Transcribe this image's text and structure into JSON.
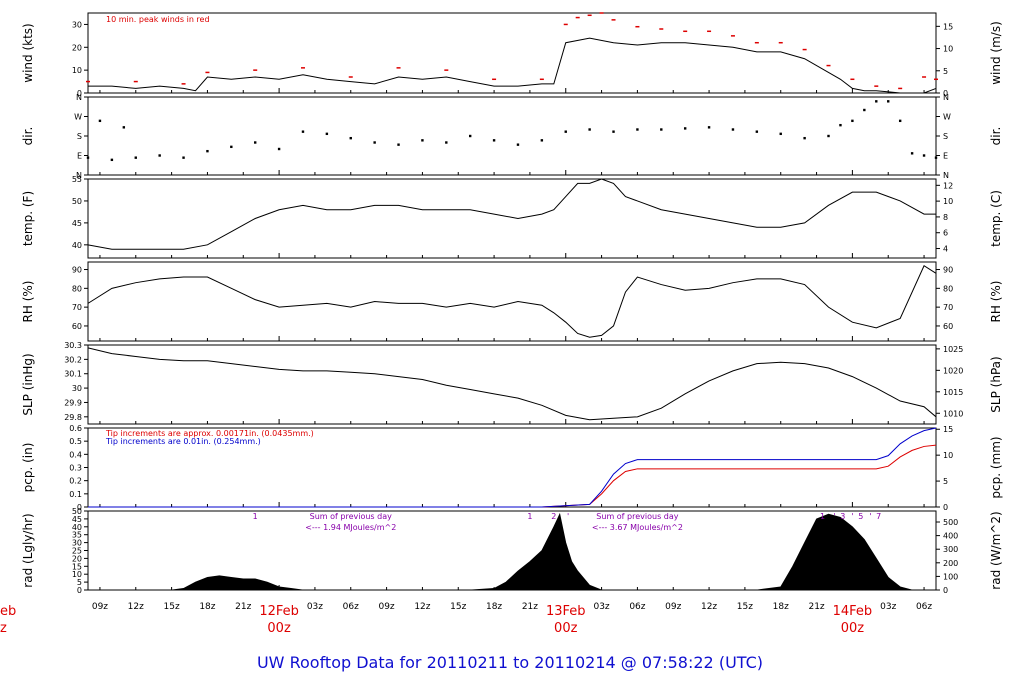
{
  "figure": {
    "title": "UW Rooftop Data for 20110211  to  20110214 @ 07:58:22  (UTC)",
    "title_color": "#1010d0"
  },
  "colors": {
    "line": "#000000",
    "red": "#dd0000",
    "blue": "#0000cc",
    "purple": "#8800aa"
  },
  "chart_data": [
    {
      "id": "wind",
      "type": "line",
      "ylabel": "wind (kts)",
      "ylabel_right": "wind (m/s)",
      "ylim": [
        0,
        35
      ],
      "yticks": [
        0,
        10,
        20,
        30
      ],
      "ylim_right": [
        0,
        18
      ],
      "yticks_right": [
        0,
        5,
        10,
        15
      ],
      "note": "10 min. peak winds in red",
      "series": [
        {
          "name": "wind",
          "color": "#000000",
          "x": [
            8,
            10,
            12,
            14,
            16,
            17,
            18,
            20,
            22,
            24,
            26,
            28,
            30,
            32,
            34,
            36,
            38,
            40,
            42,
            44,
            46,
            47,
            48,
            50,
            52,
            54,
            56,
            58,
            60,
            62,
            64,
            66,
            68,
            70,
            71,
            72,
            73,
            74,
            76,
            78,
            79
          ],
          "y": [
            3,
            3,
            2,
            3,
            2,
            1,
            7,
            6,
            7,
            6,
            8,
            6,
            5,
            4,
            7,
            6,
            7,
            5,
            3,
            3,
            4,
            4,
            22,
            24,
            22,
            21,
            22,
            22,
            21,
            20,
            18,
            18,
            15,
            9,
            6,
            2,
            1,
            1,
            0,
            0,
            2
          ]
        },
        {
          "name": "peak",
          "color": "#dd0000",
          "x": [
            8,
            12,
            16,
            18,
            22,
            26,
            30,
            34,
            38,
            42,
            46,
            48,
            49,
            50,
            51,
            52,
            54,
            56,
            58,
            60,
            62,
            64,
            66,
            68,
            70,
            72,
            74,
            76,
            78,
            79
          ],
          "y": [
            5,
            5,
            4,
            9,
            10,
            11,
            7,
            11,
            10,
            6,
            6,
            30,
            33,
            34,
            35,
            32,
            29,
            28,
            27,
            27,
            25,
            22,
            22,
            19,
            12,
            6,
            3,
            2,
            7,
            6
          ]
        }
      ]
    },
    {
      "id": "dir",
      "type": "scatter",
      "ylabel": "dir.",
      "ylabel_right": "dir.",
      "ylim": [
        0,
        360
      ],
      "ytick_labels": [
        "N",
        "E",
        "S",
        "W",
        "N"
      ],
      "ytick_values": [
        0,
        90,
        180,
        270,
        360
      ],
      "series": [
        {
          "name": "direction",
          "color": "#000000",
          "x": [
            8,
            9,
            10,
            11,
            12,
            14,
            16,
            18,
            20,
            22,
            24,
            26,
            28,
            30,
            32,
            34,
            36,
            38,
            40,
            42,
            44,
            46,
            48,
            50,
            52,
            54,
            56,
            58,
            60,
            62,
            64,
            66,
            68,
            70,
            71,
            72,
            73,
            74,
            75,
            76,
            77,
            78,
            79
          ],
          "y": [
            80,
            250,
            70,
            220,
            80,
            90,
            80,
            110,
            130,
            150,
            120,
            200,
            190,
            170,
            150,
            140,
            160,
            150,
            180,
            160,
            140,
            160,
            200,
            210,
            200,
            210,
            210,
            215,
            220,
            210,
            200,
            190,
            170,
            180,
            230,
            250,
            300,
            340,
            340,
            250,
            100,
            90,
            80
          ]
        }
      ]
    },
    {
      "id": "temp",
      "type": "line",
      "ylabel": "temp. (F)",
      "ylabel_right": "temp. (C)",
      "ylim": [
        37,
        55
      ],
      "yticks": [
        40,
        45,
        50,
        55
      ],
      "ylim_right": [
        2.8,
        12.8
      ],
      "yticks_right": [
        4,
        6,
        8,
        10,
        12
      ],
      "series": [
        {
          "name": "temperature",
          "color": "#000000",
          "x": [
            8,
            10,
            12,
            14,
            16,
            18,
            20,
            22,
            24,
            26,
            28,
            30,
            32,
            34,
            36,
            38,
            40,
            42,
            44,
            46,
            47,
            48,
            49,
            50,
            51,
            52,
            53,
            54,
            56,
            58,
            60,
            62,
            64,
            66,
            68,
            70,
            72,
            74,
            76,
            78,
            79
          ],
          "y": [
            40,
            39,
            39,
            39,
            39,
            40,
            43,
            46,
            48,
            49,
            48,
            48,
            49,
            49,
            48,
            48,
            48,
            47,
            46,
            47,
            48,
            51,
            54,
            54,
            55,
            54,
            51,
            50,
            48,
            47,
            46,
            45,
            44,
            44,
            45,
            49,
            52,
            52,
            50,
            47,
            47
          ]
        }
      ]
    },
    {
      "id": "rh",
      "type": "line",
      "ylabel": "RH (%)",
      "ylabel_right": "RH (%)",
      "ylim": [
        52,
        94
      ],
      "yticks": [
        60,
        70,
        80,
        90
      ],
      "series": [
        {
          "name": "rh",
          "color": "#000000",
          "x": [
            8,
            10,
            12,
            14,
            16,
            18,
            20,
            22,
            24,
            26,
            28,
            30,
            32,
            34,
            36,
            38,
            40,
            42,
            44,
            46,
            47,
            48,
            49,
            50,
            51,
            52,
            53,
            54,
            56,
            58,
            60,
            62,
            64,
            66,
            68,
            70,
            72,
            74,
            76,
            78,
            79
          ],
          "y": [
            72,
            80,
            83,
            85,
            86,
            86,
            80,
            74,
            70,
            71,
            72,
            70,
            73,
            72,
            72,
            70,
            72,
            70,
            73,
            71,
            67,
            62,
            56,
            54,
            55,
            60,
            78,
            86,
            82,
            79,
            80,
            83,
            85,
            85,
            82,
            70,
            62,
            59,
            64,
            92,
            88
          ]
        }
      ]
    },
    {
      "id": "slp",
      "type": "line",
      "ylabel": "SLP (inHg)",
      "ylabel_right": "SLP (hPa)",
      "ylim": [
        29.75,
        30.3
      ],
      "yticks": [
        29.8,
        29.9,
        30.0,
        30.1,
        30.2,
        30.3
      ],
      "ylim_right": [
        1007.5,
        1025.9
      ],
      "yticks_right": [
        1010,
        1015,
        1020,
        1025
      ],
      "series": [
        {
          "name": "pressure",
          "color": "#000000",
          "x": [
            8,
            10,
            12,
            14,
            16,
            18,
            20,
            22,
            24,
            26,
            28,
            30,
            32,
            34,
            36,
            38,
            40,
            42,
            44,
            46,
            48,
            50,
            52,
            54,
            56,
            58,
            60,
            62,
            64,
            66,
            68,
            70,
            72,
            74,
            76,
            78,
            79
          ],
          "y": [
            30.28,
            30.24,
            30.22,
            30.2,
            30.19,
            30.19,
            30.17,
            30.15,
            30.13,
            30.12,
            30.12,
            30.11,
            30.1,
            30.08,
            30.06,
            30.02,
            29.99,
            29.96,
            29.93,
            29.88,
            29.81,
            29.78,
            29.79,
            29.8,
            29.86,
            29.96,
            30.05,
            30.12,
            30.17,
            30.18,
            30.17,
            30.14,
            30.08,
            30.0,
            29.91,
            29.87,
            29.8
          ]
        }
      ]
    },
    {
      "id": "pcp",
      "type": "line",
      "ylabel": "pcp. (in)",
      "ylabel_right": "pcp. (mm)",
      "ylim": [
        0,
        0.6
      ],
      "yticks": [
        0.0,
        0.1,
        0.2,
        0.3,
        0.4,
        0.5,
        0.6
      ],
      "ylim_right": [
        0,
        15.24
      ],
      "yticks_right": [
        0,
        5,
        10,
        15
      ],
      "notes": [
        {
          "text": "Tip increments are approx. 0.00171in. (0.0435mm.)",
          "color": "#dd0000"
        },
        {
          "text": "Tip increments are 0.01in. (0.254mm.)",
          "color": "#0000cc"
        }
      ],
      "series": [
        {
          "name": "gauge-a",
          "color": "#dd0000",
          "x": [
            8,
            46,
            50,
            51,
            52,
            53,
            54,
            56,
            60,
            72,
            74,
            75,
            76,
            77,
            78,
            79
          ],
          "y": [
            0,
            0,
            0.02,
            0.1,
            0.2,
            0.27,
            0.29,
            0.29,
            0.29,
            0.29,
            0.29,
            0.31,
            0.38,
            0.43,
            0.46,
            0.47
          ]
        },
        {
          "name": "gauge-b",
          "color": "#0000cc",
          "x": [
            8,
            46,
            50,
            51,
            52,
            53,
            54,
            56,
            60,
            72,
            74,
            75,
            76,
            77,
            78,
            79
          ],
          "y": [
            0,
            0,
            0.02,
            0.12,
            0.25,
            0.33,
            0.36,
            0.36,
            0.36,
            0.36,
            0.36,
            0.39,
            0.48,
            0.54,
            0.58,
            0.6
          ]
        }
      ]
    },
    {
      "id": "rad",
      "type": "area",
      "ylabel": "rad (Lgly/hr)",
      "ylabel_right": "rad (W/m^2)",
      "ylim": [
        0,
        50
      ],
      "yticks": [
        0,
        5,
        10,
        15,
        20,
        25,
        30,
        35,
        40,
        45,
        50
      ],
      "ylim_right": [
        0,
        581
      ],
      "yticks_right": [
        0,
        100,
        200,
        300,
        400,
        500
      ],
      "annotations": [
        {
          "x": 22,
          "text": "1"
        },
        {
          "x": 30,
          "text": "Sum of previous day"
        },
        {
          "x": 30,
          "text": "<--- 1.94 MJoules/m^2"
        },
        {
          "x": 45,
          "text": "1"
        },
        {
          "x": 47,
          "text": "2"
        },
        {
          "x": 48.2,
          "text": "'"
        },
        {
          "x": 54,
          "text": "Sum of previous day"
        },
        {
          "x": 54,
          "text": "<--- 3.67 MJoules/m^2"
        },
        {
          "x": 69.5,
          "text": "1"
        },
        {
          "x": 70.5,
          "text": "'"
        },
        {
          "x": 71.2,
          "text": "3"
        },
        {
          "x": 72,
          "text": "'"
        },
        {
          "x": 72.7,
          "text": "5"
        },
        {
          "x": 73.5,
          "text": "'"
        },
        {
          "x": 74.2,
          "text": "7"
        }
      ],
      "series": [
        {
          "name": "radiation",
          "color": "#000000",
          "x": [
            8,
            15,
            16,
            17,
            18,
            19,
            20,
            21,
            22,
            23,
            24,
            25,
            26,
            27,
            40,
            42,
            43,
            44,
            45,
            46,
            47,
            47.5,
            48,
            48.5,
            49,
            50,
            51,
            52,
            64,
            66,
            67,
            68,
            69,
            70,
            71,
            72,
            73,
            74,
            75,
            76,
            77,
            78,
            79
          ],
          "y": [
            0,
            0,
            1,
            5,
            8,
            9,
            8,
            7,
            7,
            5,
            2,
            1,
            0,
            0,
            0,
            1,
            5,
            12,
            18,
            25,
            40,
            48,
            30,
            18,
            12,
            3,
            0,
            0,
            0,
            2,
            15,
            30,
            45,
            48,
            46,
            40,
            32,
            20,
            8,
            2,
            0,
            0,
            0
          ]
        }
      ]
    }
  ],
  "time_axis": {
    "x_domain": [
      8,
      79
    ],
    "ticks": [
      {
        "x": 9,
        "label": "09z"
      },
      {
        "x": 12,
        "label": "12z"
      },
      {
        "x": 15,
        "label": "15z"
      },
      {
        "x": 18,
        "label": "18z"
      },
      {
        "x": 21,
        "label": "21z"
      },
      {
        "x": 27,
        "label": "03z"
      },
      {
        "x": 30,
        "label": "06z"
      },
      {
        "x": 33,
        "label": "09z"
      },
      {
        "x": 36,
        "label": "12z"
      },
      {
        "x": 39,
        "label": "15z"
      },
      {
        "x": 42,
        "label": "18z"
      },
      {
        "x": 45,
        "label": "21z"
      },
      {
        "x": 51,
        "label": "03z"
      },
      {
        "x": 54,
        "label": "06z"
      },
      {
        "x": 57,
        "label": "09z"
      },
      {
        "x": 60,
        "label": "12z"
      },
      {
        "x": 63,
        "label": "15z"
      },
      {
        "x": 66,
        "label": "18z"
      },
      {
        "x": 69,
        "label": "21z"
      },
      {
        "x": 75,
        "label": "03z"
      },
      {
        "x": 78,
        "label": "06z"
      }
    ],
    "day_marks": [
      {
        "x": 24,
        "day": "12Feb",
        "hour": "00z"
      },
      {
        "x": 48,
        "day": "13Feb",
        "hour": "00z"
      },
      {
        "x": 72,
        "day": "14Feb",
        "hour": "00z"
      }
    ],
    "partial_day_mark": {
      "day": "eb",
      "hour": "z"
    }
  }
}
